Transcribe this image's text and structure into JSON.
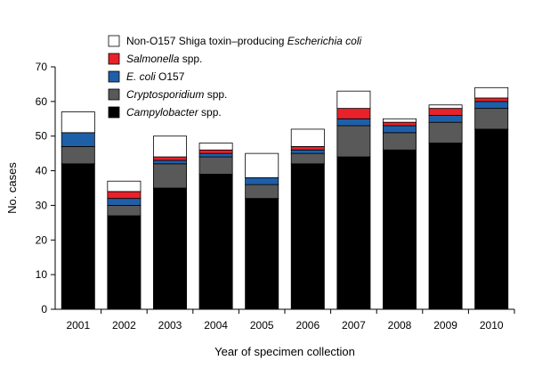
{
  "chart_data": {
    "type": "bar",
    "stacked": true,
    "categories": [
      "2001",
      "2002",
      "2003",
      "2004",
      "2005",
      "2006",
      "2007",
      "2008",
      "2009",
      "2010"
    ],
    "series": [
      {
        "name": "Campylobacter spp.",
        "legend_parts": [
          {
            "text": "Campylobacter",
            "italic": true
          },
          {
            "text": " spp.",
            "italic": false
          }
        ],
        "color": "#000000",
        "values": [
          42,
          27,
          35,
          39,
          32,
          42,
          44,
          46,
          48,
          52
        ]
      },
      {
        "name": "Cryptosporidium spp.",
        "legend_parts": [
          {
            "text": "Cryptosporidium",
            "italic": true
          },
          {
            "text": " spp.",
            "italic": false
          }
        ],
        "color": "#595959",
        "values": [
          5,
          3,
          7,
          5,
          4,
          3,
          9,
          5,
          6,
          6
        ]
      },
      {
        "name": "E. coli O157",
        "legend_parts": [
          {
            "text": "E. coli",
            "italic": true
          },
          {
            "text": " O157",
            "italic": false
          }
        ],
        "color": "#1f5fa8",
        "values": [
          4,
          2,
          1,
          1,
          2,
          1,
          2,
          2,
          2,
          2
        ]
      },
      {
        "name": "Salmonella spp.",
        "legend_parts": [
          {
            "text": "Salmonella",
            "italic": true
          },
          {
            "text": " spp.",
            "italic": false
          }
        ],
        "color": "#e8212a",
        "values": [
          0,
          2,
          1,
          1,
          0,
          1,
          3,
          1,
          2,
          1
        ]
      },
      {
        "name": "Non-O157 Shiga toxin–producing Escherichia coli",
        "legend_parts": [
          {
            "text": "Non-O157 Shiga toxin–producing ",
            "italic": false
          },
          {
            "text": "Escherichia coli",
            "italic": true
          }
        ],
        "color": "#ffffff",
        "values": [
          6,
          3,
          6,
          2,
          7,
          5,
          5,
          1,
          1,
          3
        ]
      }
    ],
    "legend_order": [
      4,
      3,
      2,
      1,
      0
    ],
    "xlabel": "Year of specimen collection",
    "ylabel": "No. cases",
    "ylim": [
      0,
      70
    ],
    "yticks": [
      0,
      10,
      20,
      30,
      40,
      50,
      60,
      70
    ],
    "grid": false,
    "legend_position": "top-left inside plot"
  }
}
